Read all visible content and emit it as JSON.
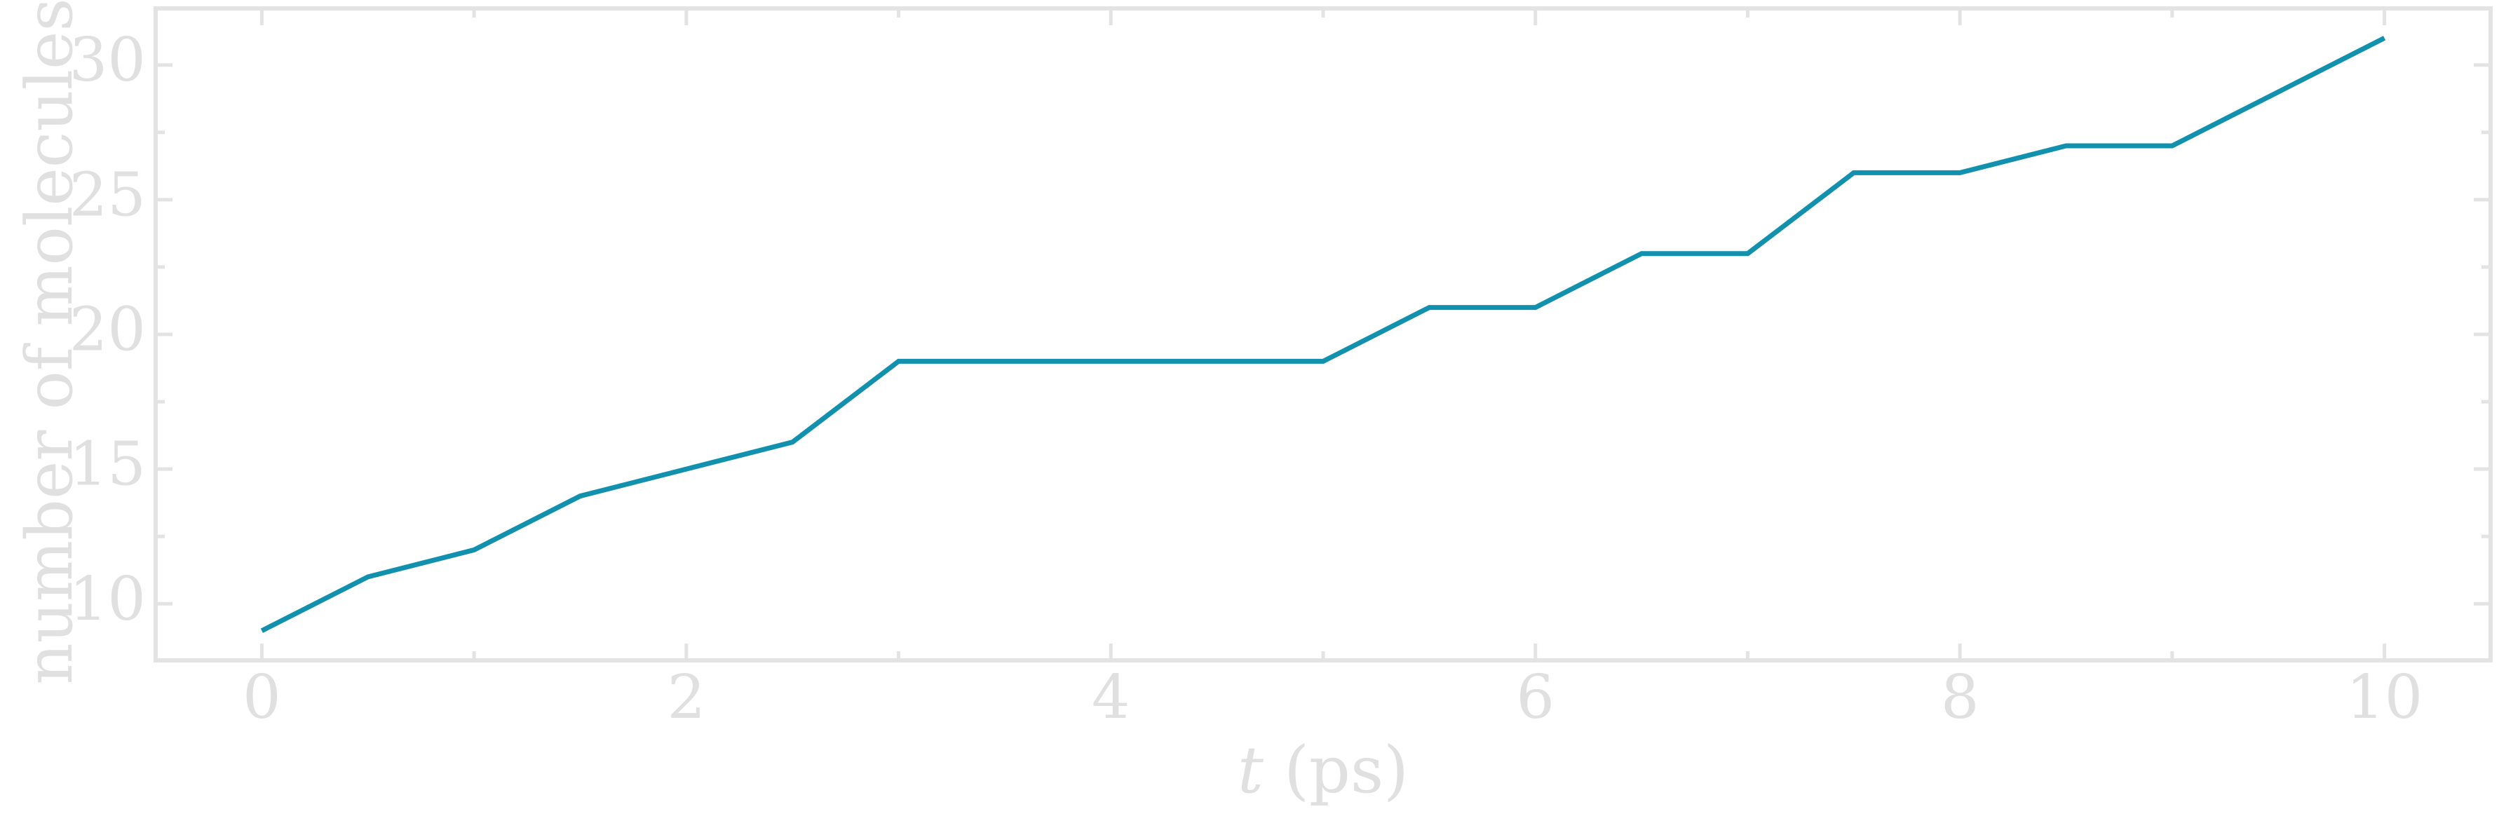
{
  "chart_data": {
    "type": "line",
    "title": "",
    "xlabel_italic": "t",
    "xlabel_rest": " (ps)",
    "ylabel": "number of molecules",
    "xlim": [
      -0.5,
      10.5
    ],
    "ylim": [
      7.9,
      32.1
    ],
    "x_major_ticks": [
      0,
      2,
      4,
      6,
      8,
      10
    ],
    "x_minor_ticks": [
      1,
      3,
      5,
      7,
      9
    ],
    "y_major_ticks": [
      10,
      15,
      20,
      25,
      30
    ],
    "y_minor_ticks": [
      12.5,
      17.5,
      22.5,
      27.5
    ],
    "x_tick_labels": [
      "0",
      "2",
      "4",
      "6",
      "8",
      "10"
    ],
    "y_tick_labels": [
      "10",
      "15",
      "20",
      "25",
      "30"
    ],
    "grid": false,
    "series": [
      {
        "color": "#1191ad",
        "x": [
          0,
          0.5,
          1,
          1.5,
          2,
          2.5,
          3,
          3.5,
          4,
          4.5,
          5,
          5.5,
          6,
          6.5,
          7,
          7.5,
          8,
          8.5,
          9,
          9.5,
          10
        ],
        "y": [
          9,
          11,
          12,
          14,
          15,
          16,
          19,
          19,
          19,
          19,
          19,
          21,
          21,
          23,
          23,
          26,
          26,
          27,
          27,
          29,
          31
        ]
      }
    ]
  }
}
